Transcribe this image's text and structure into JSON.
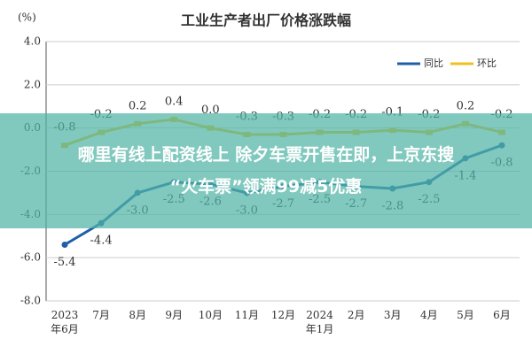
{
  "chart_data": {
    "type": "line",
    "title": "工业生产者出厂价格涨跌幅",
    "y_label": "(%)",
    "categories": [
      "2023年6月",
      "7月",
      "8月",
      "9月",
      "10月",
      "11月",
      "12月",
      "2024年1月",
      "2月",
      "3月",
      "4月",
      "5月",
      "6月"
    ],
    "series": [
      {
        "name": "同比",
        "color": "#1f5fa8",
        "values": [
          -5.4,
          -4.4,
          -3.0,
          -2.5,
          -2.6,
          -3.0,
          -2.7,
          -2.5,
          -2.7,
          -2.8,
          -2.5,
          -1.4,
          -0.8
        ],
        "value_labels": [
          "-5.4",
          "-4.4",
          "-3.0",
          "-2.5",
          "-2.6",
          "-3.0",
          "-2.7",
          "-2.5",
          "-2.7",
          "-2.8",
          "-2.5",
          "-1.4",
          "-0.8"
        ]
      },
      {
        "name": "环比",
        "color": "#f2c01e",
        "values": [
          -0.8,
          -0.2,
          0.2,
          0.4,
          0.0,
          -0.3,
          -0.3,
          -0.2,
          -0.2,
          -0.1,
          -0.2,
          0.2,
          -0.2
        ],
        "value_labels": [
          "-0.8",
          "-0.2",
          "0.2",
          "0.4",
          "0.0",
          "-0.3",
          "-0.3",
          "-0.2",
          "-0.2",
          "-0.1",
          "-0.2",
          "0.2",
          "-0.2"
        ]
      }
    ],
    "ylim": [
      -8,
      4
    ],
    "yticks": [
      {
        "value": 4,
        "label": "4.0"
      },
      {
        "value": 2,
        "label": "2.0"
      },
      {
        "value": 0,
        "label": "0.0"
      },
      {
        "value": -2,
        "label": "-2.0"
      },
      {
        "value": -4,
        "label": "-4.0"
      },
      {
        "value": -6,
        "label": "-6.0"
      },
      {
        "value": -8,
        "label": "-8.0"
      }
    ],
    "grid": true,
    "legend": "upper right"
  },
  "overlay": {
    "lines": [
      "哪里有线上配资线上 除夕车票开售在即，上京东搜",
      "“火车票”领满99减5优惠"
    ]
  }
}
